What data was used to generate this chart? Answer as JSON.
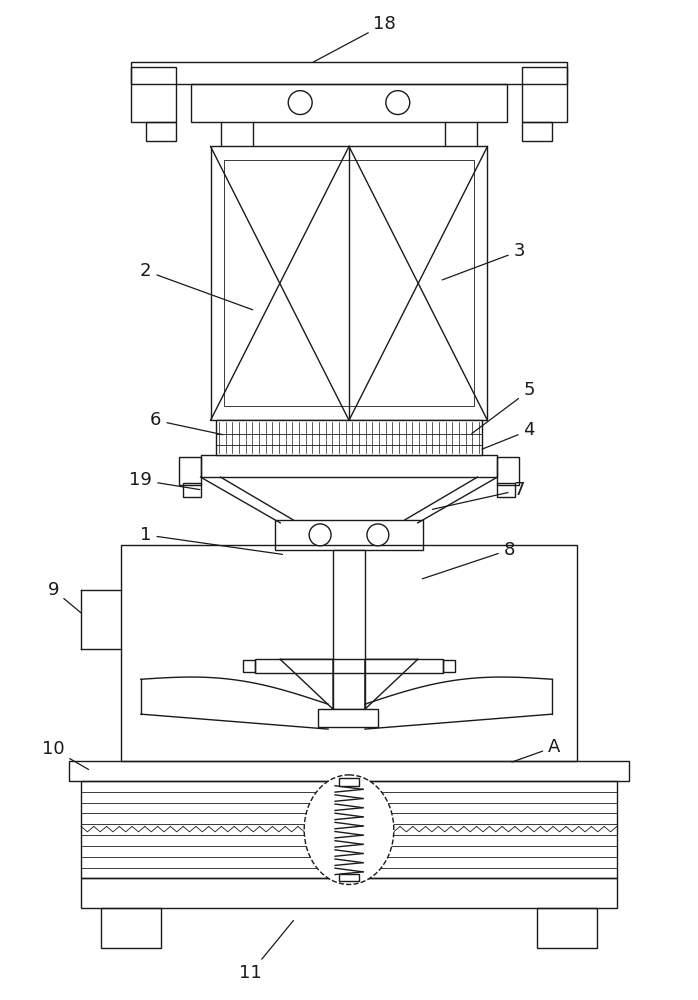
{
  "bg_color": "#ffffff",
  "line_color": "#1a1a1a",
  "label_color": "#1a1a1a",
  "lw": 1.0,
  "lw_thin": 0.6,
  "fig_width": 6.98,
  "fig_height": 10.0,
  "dpi": 100
}
